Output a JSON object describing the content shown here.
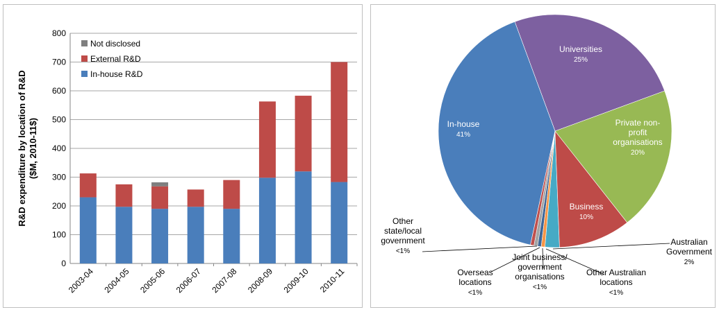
{
  "colors": {
    "in_house": "#4a7ebb",
    "external": "#be4b48",
    "not_disclosed": "#7f7f7f",
    "grid": "#a6a6a6",
    "pie_in_house": "#4a7ebb",
    "pie_universities": "#7d60a0",
    "pie_private_non_profit": "#98b954",
    "pie_business": "#be4b48",
    "pie_australian_government": "#46aac5",
    "pie_other_australian": "#f69546",
    "pie_joint": "#3f6797",
    "pie_overseas": "#a4a4a4",
    "pie_other_state": "#c0504d"
  },
  "chart_data": [
    {
      "type": "bar",
      "stacked": true,
      "categories": [
        "2003-04",
        "2004-05",
        "2005-06",
        "2006-07",
        "2007-08",
        "2008-09",
        "2009-10",
        "2010-11"
      ],
      "series": [
        {
          "name": "In-house R&D",
          "values": [
            230,
            197,
            190,
            197,
            190,
            298,
            320,
            283
          ]
        },
        {
          "name": "External R&D",
          "values": [
            83,
            78,
            78,
            60,
            100,
            265,
            263,
            417
          ]
        },
        {
          "name": "Not disclosed",
          "values": [
            0,
            0,
            14,
            0,
            0,
            0,
            0,
            0
          ]
        }
      ],
      "legend_order": [
        "Not disclosed",
        "External R&D",
        "In-house R&D"
      ],
      "ylabel_line1": "R&D expenditure by location of R&D",
      "ylabel_line2": "($M, 2010-11$)",
      "ylim": [
        0,
        800
      ],
      "yticks": [
        "0",
        "100",
        "200",
        "300",
        "400",
        "500",
        "600",
        "700",
        "800"
      ],
      "grid": true,
      "legend_position": "top-left"
    },
    {
      "type": "pie",
      "slices": [
        {
          "name": "Australian Government",
          "value": 2,
          "label_lines": [
            "Australian",
            "Government",
            "2%"
          ]
        },
        {
          "name": "Business",
          "value": 10,
          "label_lines": [
            "Business",
            "10%"
          ]
        },
        {
          "name": "Private non-profit organisations",
          "value": 20,
          "label_lines": [
            "Private non-",
            "profit",
            "organisations",
            "20%"
          ]
        },
        {
          "name": "Universities",
          "value": 25,
          "label_lines": [
            "Universities",
            "25%"
          ]
        },
        {
          "name": "In-house",
          "value": 41,
          "label_lines": [
            "In-house",
            "41%"
          ]
        },
        {
          "name": "Other state/local government",
          "value": 0.5,
          "label_lines": [
            "Other",
            "state/local",
            "government",
            "<1%"
          ]
        },
        {
          "name": "Overseas locations",
          "value": 0.5,
          "label_lines": [
            "Overseas",
            "locations",
            "<1%"
          ]
        },
        {
          "name": "Joint business/ government organisations",
          "value": 0.5,
          "label_lines": [
            "Joint business/",
            "government",
            "organisations",
            "<1%"
          ]
        },
        {
          "name": "Other Australian locations",
          "value": 0.5,
          "label_lines": [
            "Other Australian",
            "locations",
            "<1%"
          ]
        }
      ]
    }
  ]
}
